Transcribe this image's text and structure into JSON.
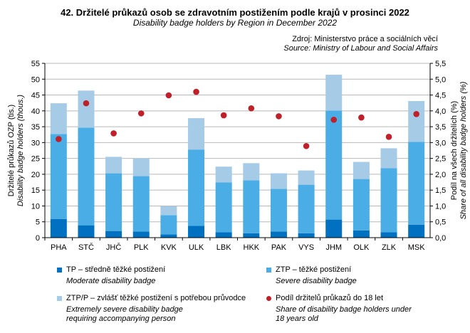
{
  "title": "42. Držitelé průkazů osob se zdravotním postižením podle krajů v prosinci 2022",
  "subtitle": "Disability badge holders by Region in December 2022",
  "source_cz": "Zdroj: Ministerstvo práce a sociálních věcí",
  "source_en": "Source: Ministry of Labour and Social Affairs",
  "chart_data": {
    "type": "bar",
    "stacked": true,
    "categories": [
      "PHA",
      "STČ",
      "JHČ",
      "PLK",
      "KVK",
      "ULK",
      "LBK",
      "HKK",
      "PAK",
      "VYS",
      "JHM",
      "OLK",
      "ZLK",
      "MSK"
    ],
    "ylabel": "Držitelé průkazů OZP (tis.)",
    "ylabel_en": "Disability badge holders (thous.)",
    "y2label": "Podíl na všech držitelích (%)",
    "y2label_en": "Share of all disability badge holders (%)",
    "ylim": [
      0,
      55
    ],
    "yticks": [
      "0",
      "5",
      "10",
      "15",
      "20",
      "25",
      "30",
      "35",
      "40",
      "45",
      "50",
      "55"
    ],
    "y2lim": [
      0,
      5.5
    ],
    "y2ticks": [
      "0,0",
      "0,5",
      "1,0",
      "1,5",
      "2,0",
      "2,5",
      "3,0",
      "3,5",
      "4,0",
      "4,5",
      "5,0",
      "5,5"
    ],
    "grid": true,
    "legend_placement": "bottom",
    "series": [
      {
        "name": "TP – středně těžké postižení",
        "name_en": "Moderate disability badge",
        "color": "#0070c0",
        "type": "bar",
        "values": [
          5.9,
          3.9,
          2.1,
          1.9,
          1.0,
          3.7,
          1.7,
          1.4,
          1.9,
          1.4,
          5.7,
          2.3,
          1.7,
          4.1
        ]
      },
      {
        "name": "ZTP – těžké postižení",
        "name_en": "Severe disability badge",
        "color": "#4aade6",
        "type": "bar",
        "values": [
          26.8,
          30.8,
          18.2,
          17.5,
          6.1,
          24.1,
          15.7,
          16.7,
          13.5,
          15.3,
          34.4,
          16.2,
          20.2,
          26.1
        ]
      },
      {
        "name": "ZTP/P – zvlášť těžké postižení s potřebou průvodce",
        "name_en": "Extremely severe disability badge requiring accompanying person",
        "color": "#a6cbe7",
        "type": "bar",
        "values": [
          9.7,
          11.7,
          5.2,
          5.6,
          2.8,
          9.9,
          5.0,
          5.4,
          4.9,
          4.5,
          11.3,
          5.4,
          6.3,
          12.9
        ]
      },
      {
        "name": "Podíl držitelů průkazů do 18 let",
        "name_en": "Share of disability badge holders under 18 years old",
        "color": "#c0202a",
        "type": "scatter",
        "axis": "right",
        "values": [
          3.11,
          4.24,
          3.29,
          3.92,
          4.49,
          4.6,
          3.86,
          4.08,
          3.83,
          2.89,
          3.72,
          3.79,
          3.18,
          3.9
        ]
      }
    ]
  }
}
